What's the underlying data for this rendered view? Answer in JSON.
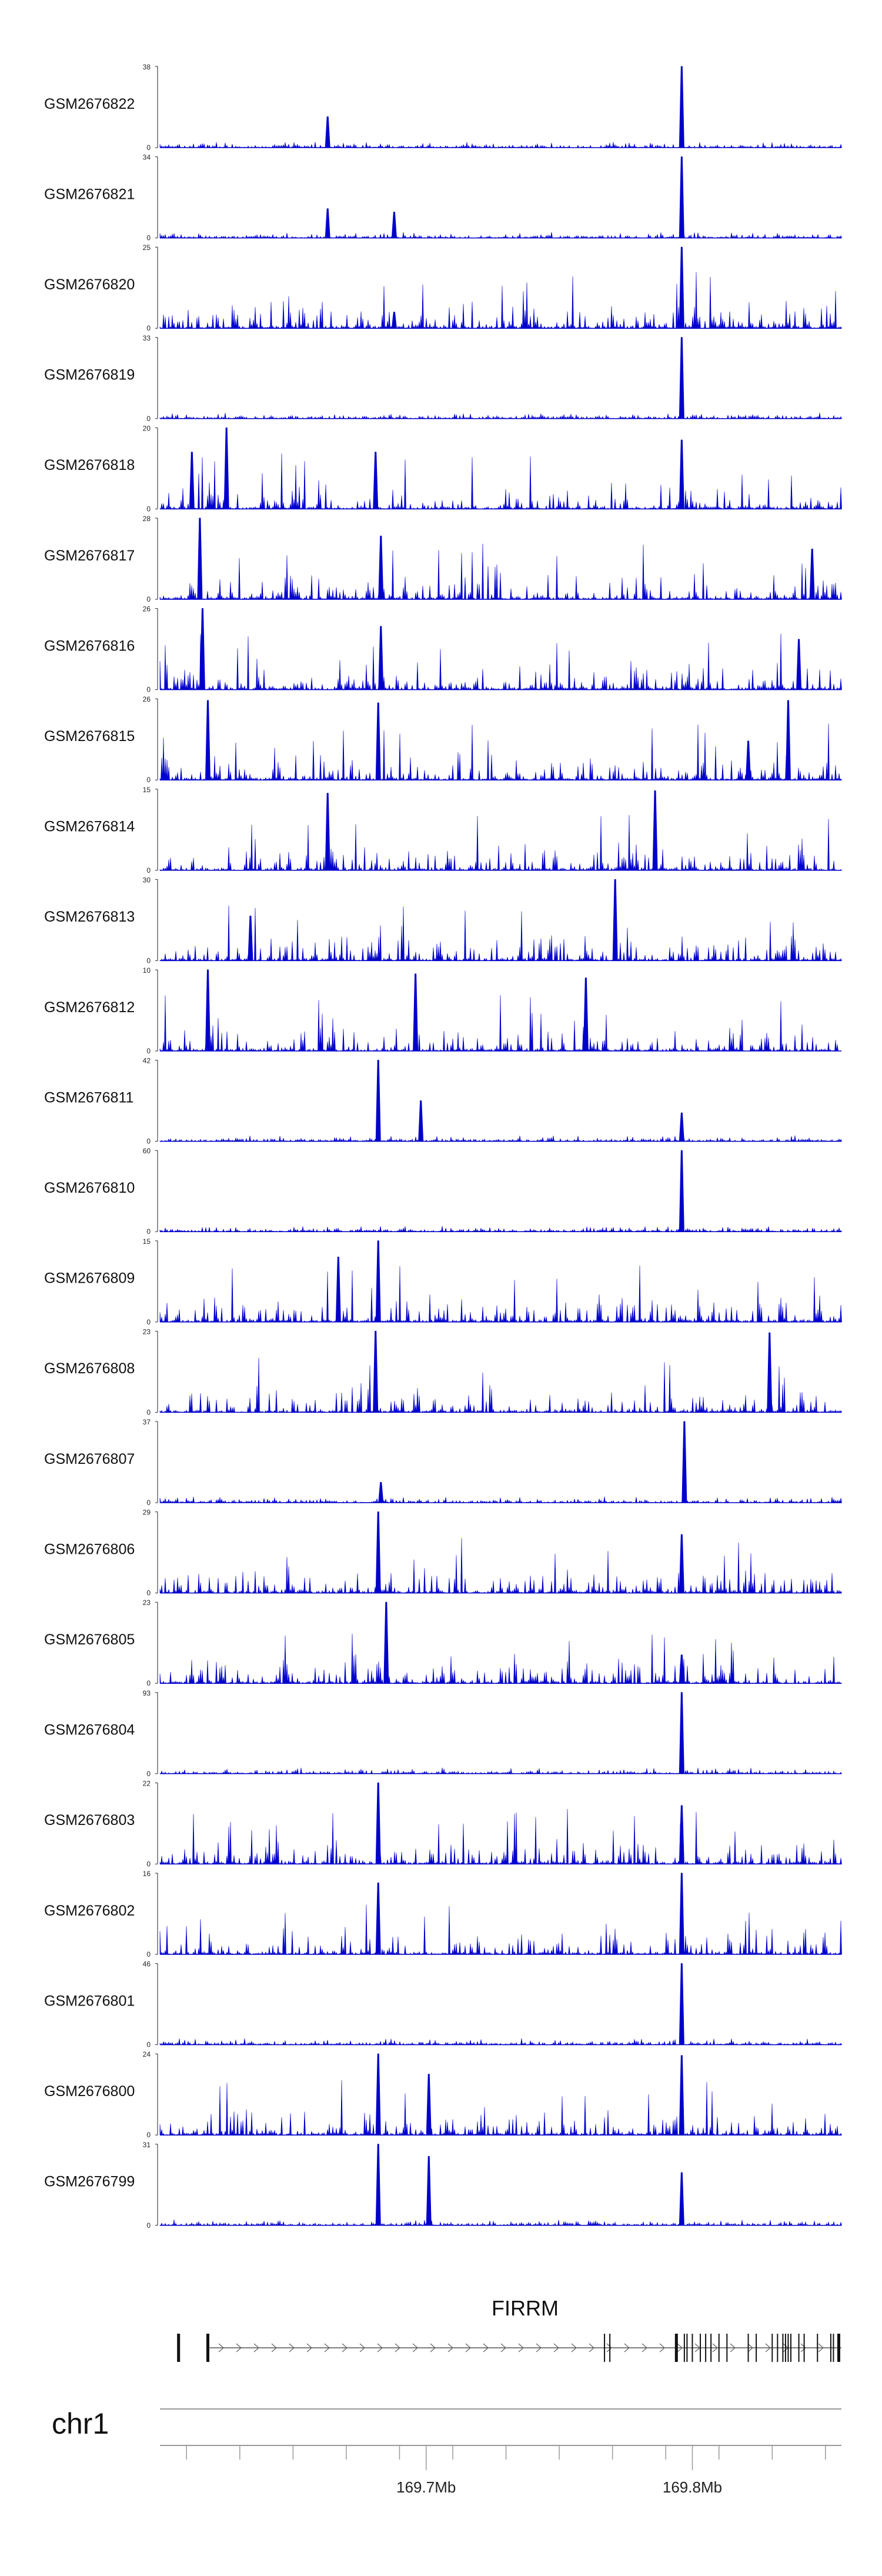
{
  "chart_data": {
    "type": "area",
    "chromosome": "chr1",
    "coordinate_labels": [
      {
        "position_mb": 169.7,
        "label": "169.7Mb"
      },
      {
        "position_mb": 169.8,
        "label": "169.8Mb"
      }
    ],
    "x_range_mb": [
      169.6,
      169.856
    ],
    "series_color": "#0000cc",
    "tracks": [
      {
        "name": "GSM2676822",
        "ymax": 38,
        "ymin": 0,
        "peaks": [
          {
            "x": 169.663,
            "h": 0.38
          },
          {
            "x": 169.796,
            "h": 1.0
          }
        ]
      },
      {
        "name": "GSM2676821",
        "ymax": 34,
        "ymin": 0,
        "peaks": [
          {
            "x": 169.688,
            "h": 0.32
          },
          {
            "x": 169.663,
            "h": 0.36
          },
          {
            "x": 169.796,
            "h": 1.0
          }
        ]
      },
      {
        "name": "GSM2676820",
        "ymax": 25,
        "ymin": 0,
        "peaks": [
          {
            "x": 169.688,
            "h": 0.2
          },
          {
            "x": 169.796,
            "h": 1.0
          }
        ]
      },
      {
        "name": "GSM2676819",
        "ymax": 33,
        "ymin": 0,
        "peaks": [
          {
            "x": 169.796,
            "h": 1.0
          }
        ]
      },
      {
        "name": "GSM2676818",
        "ymax": 20,
        "ymin": 0,
        "peaks": [
          {
            "x": 169.625,
            "h": 1.0
          },
          {
            "x": 169.612,
            "h": 0.7
          },
          {
            "x": 169.681,
            "h": 0.7
          },
          {
            "x": 169.796,
            "h": 0.85
          }
        ]
      },
      {
        "name": "GSM2676817",
        "ymax": 28,
        "ymin": 0,
        "peaks": [
          {
            "x": 169.615,
            "h": 1.0
          },
          {
            "x": 169.683,
            "h": 0.78
          },
          {
            "x": 169.845,
            "h": 0.62
          }
        ]
      },
      {
        "name": "GSM2676816",
        "ymax": 26,
        "ymin": 0,
        "peaks": [
          {
            "x": 169.616,
            "h": 1.0
          },
          {
            "x": 169.683,
            "h": 0.78
          },
          {
            "x": 169.84,
            "h": 0.62
          }
        ]
      },
      {
        "name": "GSM2676815",
        "ymax": 26,
        "ymin": 0,
        "peaks": [
          {
            "x": 169.618,
            "h": 0.98
          },
          {
            "x": 169.682,
            "h": 0.95
          },
          {
            "x": 169.821,
            "h": 0.48
          },
          {
            "x": 169.836,
            "h": 0.98
          }
        ]
      },
      {
        "name": "GSM2676814",
        "ymax": 15,
        "ymin": 0,
        "peaks": [
          {
            "x": 169.663,
            "h": 0.95
          },
          {
            "x": 169.786,
            "h": 0.98
          }
        ]
      },
      {
        "name": "GSM2676813",
        "ymax": 30,
        "ymin": 0,
        "peaks": [
          {
            "x": 169.771,
            "h": 1.0
          },
          {
            "x": 169.634,
            "h": 0.55
          }
        ]
      },
      {
        "name": "GSM2676812",
        "ymax": 10,
        "ymin": 0,
        "peaks": [
          {
            "x": 169.618,
            "h": 1.0
          },
          {
            "x": 169.696,
            "h": 0.95
          },
          {
            "x": 169.76,
            "h": 0.9
          }
        ]
      },
      {
        "name": "GSM2676811",
        "ymax": 42,
        "ymin": 0,
        "peaks": [
          {
            "x": 169.682,
            "h": 1.0
          },
          {
            "x": 169.698,
            "h": 0.5
          },
          {
            "x": 169.796,
            "h": 0.35
          }
        ]
      },
      {
        "name": "GSM2676810",
        "ymax": 60,
        "ymin": 0,
        "peaks": [
          {
            "x": 169.796,
            "h": 1.0
          }
        ]
      },
      {
        "name": "GSM2676809",
        "ymax": 15,
        "ymin": 0,
        "peaks": [
          {
            "x": 169.682,
            "h": 1.0
          },
          {
            "x": 169.667,
            "h": 0.8
          }
        ]
      },
      {
        "name": "GSM2676808",
        "ymax": 23,
        "ymin": 0,
        "peaks": [
          {
            "x": 169.681,
            "h": 1.0
          },
          {
            "x": 169.829,
            "h": 0.98
          }
        ]
      },
      {
        "name": "GSM2676807",
        "ymax": 37,
        "ymin": 0,
        "peaks": [
          {
            "x": 169.797,
            "h": 1.0
          },
          {
            "x": 169.683,
            "h": 0.25
          }
        ]
      },
      {
        "name": "GSM2676806",
        "ymax": 29,
        "ymin": 0,
        "peaks": [
          {
            "x": 169.682,
            "h": 1.0
          },
          {
            "x": 169.796,
            "h": 0.72
          }
        ]
      },
      {
        "name": "GSM2676805",
        "ymax": 23,
        "ymin": 0,
        "peaks": [
          {
            "x": 169.685,
            "h": 1.0
          },
          {
            "x": 169.796,
            "h": 0.35
          }
        ]
      },
      {
        "name": "GSM2676804",
        "ymax": 93,
        "ymin": 0,
        "peaks": [
          {
            "x": 169.796,
            "h": 1.0
          }
        ]
      },
      {
        "name": "GSM2676803",
        "ymax": 22,
        "ymin": 0,
        "peaks": [
          {
            "x": 169.682,
            "h": 1.0
          },
          {
            "x": 169.796,
            "h": 0.72
          }
        ]
      },
      {
        "name": "GSM2676802",
        "ymax": 16,
        "ymin": 0,
        "peaks": [
          {
            "x": 169.796,
            "h": 1.0
          },
          {
            "x": 169.682,
            "h": 0.88
          }
        ]
      },
      {
        "name": "GSM2676801",
        "ymax": 46,
        "ymin": 0,
        "peaks": [
          {
            "x": 169.796,
            "h": 1.0
          }
        ]
      },
      {
        "name": "GSM2676800",
        "ymax": 24,
        "ymin": 0,
        "peaks": [
          {
            "x": 169.682,
            "h": 1.0
          },
          {
            "x": 169.796,
            "h": 0.98
          },
          {
            "x": 169.701,
            "h": 0.75
          }
        ]
      },
      {
        "name": "GSM2676799",
        "ymax": 31,
        "ymin": 0,
        "peaks": [
          {
            "x": 169.682,
            "h": 1.0
          },
          {
            "x": 169.796,
            "h": 0.65
          },
          {
            "x": 169.701,
            "h": 0.85
          }
        ]
      }
    ],
    "gene": {
      "name": "FIRRM",
      "exons_mb": [
        169.607,
        169.618,
        169.767,
        169.769,
        169.794,
        169.797,
        169.798,
        169.8,
        169.803,
        169.805,
        169.807,
        169.81,
        169.813,
        169.821,
        169.824,
        169.83,
        169.832,
        169.834,
        169.835,
        169.836,
        169.837,
        169.84,
        169.842,
        169.847,
        169.852,
        169.853,
        169.855
      ]
    }
  }
}
